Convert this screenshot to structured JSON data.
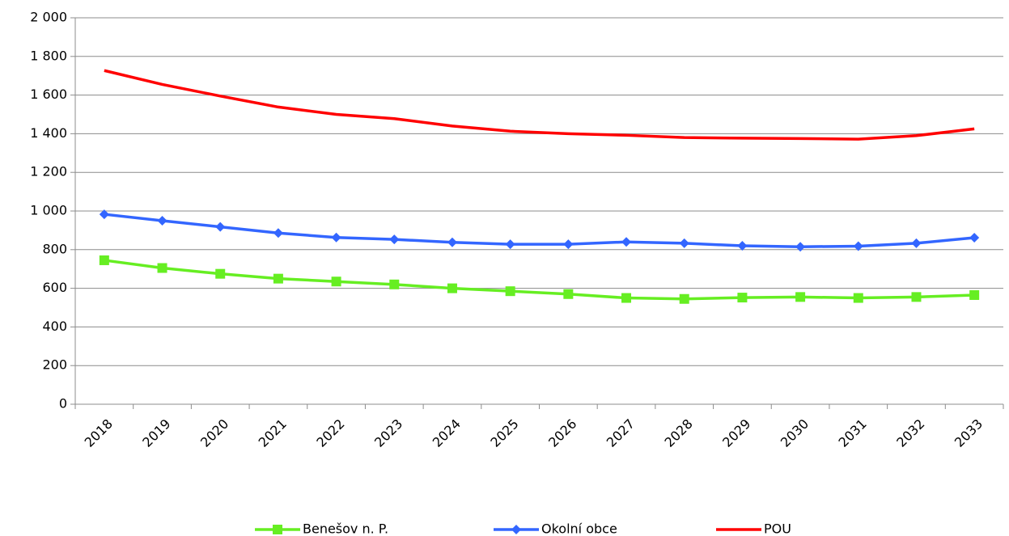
{
  "chart_data": {
    "type": "line",
    "categories": [
      "2018",
      "2019",
      "2020",
      "2021",
      "2022",
      "2023",
      "2024",
      "2025",
      "2026",
      "2027",
      "2028",
      "2029",
      "2030",
      "2031",
      "2032",
      "2033"
    ],
    "series": [
      {
        "name": "Benešov n. P.",
        "color": "#66ee22",
        "marker": "square",
        "values": [
          745,
          705,
          675,
          650,
          635,
          620,
          600,
          585,
          570,
          550,
          545,
          552,
          555,
          550,
          555,
          565
        ]
      },
      {
        "name": "Okolní obce",
        "color": "#3366ff",
        "marker": "diamond",
        "values": [
          983,
          950,
          918,
          886,
          863,
          853,
          838,
          828,
          828,
          840,
          833,
          820,
          815,
          818,
          833,
          862
        ]
      },
      {
        "name": "POU",
        "color": "#ff0000",
        "marker": "none",
        "values": [
          1727,
          1655,
          1595,
          1538,
          1500,
          1478,
          1440,
          1413,
          1400,
          1392,
          1380,
          1377,
          1375,
          1372,
          1390,
          1425
        ]
      }
    ],
    "ylim": [
      0,
      2000
    ],
    "yticks": [
      0,
      200,
      400,
      600,
      800,
      {
        "value": 1000,
        "label": "1 000"
      },
      {
        "value": 1200,
        "label": "1 200"
      },
      {
        "value": 1400,
        "label": "1 400"
      },
      {
        "value": 1600,
        "label": "1 600"
      },
      {
        "value": 1800,
        "label": "1 800"
      },
      {
        "value": 2000,
        "label": "2 000"
      }
    ],
    "grid": true,
    "legend": "bottom"
  }
}
